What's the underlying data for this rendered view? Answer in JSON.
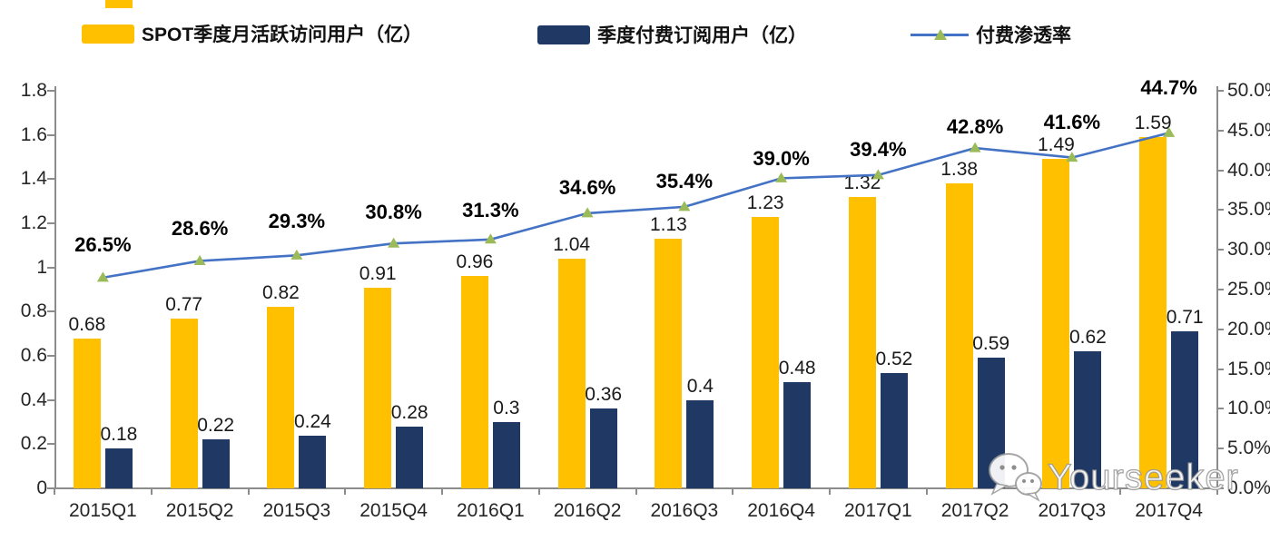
{
  "legend": {
    "items": [
      {
        "label": "SPOT季度月活跃访问用户（亿）",
        "swatch": "bar",
        "color": "#FFC000"
      },
      {
        "label": "季度付费订阅用户（亿）",
        "swatch": "bar",
        "color": "#1F3864"
      },
      {
        "label": "付费渗透率",
        "swatch": "line",
        "line_color": "#4472C4",
        "marker_color": "#9BBB59"
      }
    ]
  },
  "chart_data": {
    "type": "combo-bar-line",
    "title": "",
    "categories": [
      "2015Q1",
      "2015Q2",
      "2015Q3",
      "2015Q4",
      "2016Q1",
      "2016Q2",
      "2016Q3",
      "2016Q4",
      "2017Q1",
      "2017Q2",
      "2017Q3",
      "2017Q4"
    ],
    "series": [
      {
        "name": "SPOT季度月活跃访问用户（亿）",
        "type": "bar",
        "axis": "left",
        "color": "#FFC000",
        "values": [
          0.68,
          0.77,
          0.82,
          0.91,
          0.96,
          1.04,
          1.13,
          1.23,
          1.32,
          1.38,
          1.49,
          1.59
        ],
        "labels": [
          "0.68",
          "0.77",
          "0.82",
          "0.91",
          "0.96",
          "1.04",
          "1.13",
          "1.23",
          "1.32",
          "1.38",
          "1.49",
          "1.59"
        ]
      },
      {
        "name": "季度付费订阅用户（亿）",
        "type": "bar",
        "axis": "left",
        "color": "#1F3864",
        "values": [
          0.18,
          0.22,
          0.24,
          0.28,
          0.3,
          0.36,
          0.4,
          0.48,
          0.52,
          0.59,
          0.62,
          0.71
        ],
        "labels": [
          "0.18",
          "0.22",
          "0.24",
          "0.28",
          "0.3",
          "0.36",
          "0.4",
          "0.48",
          "0.52",
          "0.59",
          "0.62",
          "0.71"
        ]
      },
      {
        "name": "付费渗透率",
        "type": "line",
        "axis": "right",
        "color": "#4472C4",
        "marker": "triangle-up",
        "marker_color": "#9BBB59",
        "values": [
          26.5,
          28.6,
          29.3,
          30.8,
          31.3,
          34.6,
          35.4,
          39.0,
          39.4,
          42.8,
          41.6,
          44.7
        ],
        "labels": [
          "26.5%",
          "28.6%",
          "29.3%",
          "30.8%",
          "31.3%",
          "34.6%",
          "35.4%",
          "39.0%",
          "39.4%",
          "42.8%",
          "41.6%",
          "44.7%"
        ],
        "label_dy": [
          -48,
          -47,
          -49,
          -46,
          -44,
          -40,
          -40,
          -33,
          -40,
          -35,
          -51,
          -61
        ]
      }
    ],
    "left_axis": {
      "min": 0,
      "max": 1.8,
      "tick_labels": [
        "1.8",
        "1.6",
        "1.4",
        "1.2",
        "1",
        "0.8",
        "0.6",
        "0.4",
        "0.2",
        "0"
      ]
    },
    "right_axis": {
      "min": 0,
      "max": 50,
      "tick_labels": [
        "50.0%",
        "45.0%",
        "40.0%",
        "35.0%",
        "30.0%",
        "25.0%",
        "20.0%",
        "15.0%",
        "10.0%",
        "5.0%",
        "0.0%"
      ]
    },
    "grid": false,
    "legend_position": "top"
  },
  "watermark": {
    "text": "Yourseeker",
    "icon": "wechat-icon"
  }
}
